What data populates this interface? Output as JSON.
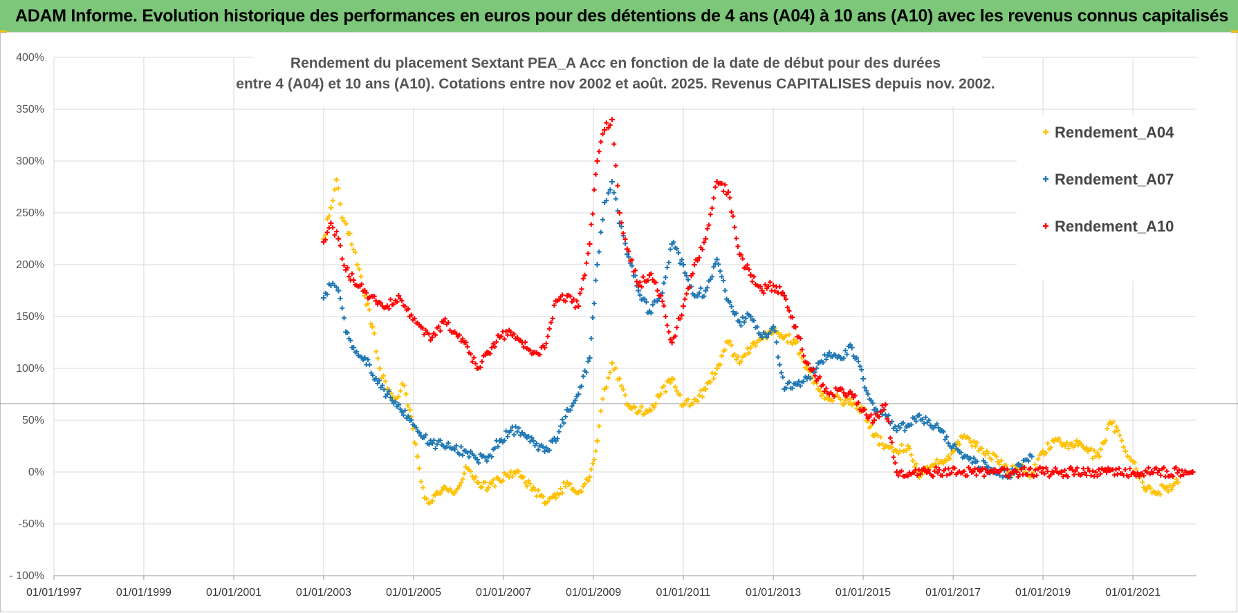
{
  "banner": {
    "title": "ADAM Informe. Evolution historique des performances en euros pour des détentions de 4 ans (A04) à 10 ans (A10) avec les revenus connus capitalisés",
    "background": "#7cc779"
  },
  "chart_data": {
    "type": "scatter",
    "title_line1": "Rendement du placement Sextant PEA_A Acc en fonction de la date de début pour des durées",
    "title_line2": "entre 4 (A04) et 10 ans (A10). Cotations entre nov 2002 et août. 2025. Revenus CAPITALISES depuis nov. 2002.",
    "x_axis": {
      "type": "date",
      "min": "1997-01-01",
      "max": "2022-06-01",
      "ticks": [
        "1997-01-01",
        "1999-01-01",
        "2001-01-01",
        "2003-01-01",
        "2005-01-01",
        "2007-01-01",
        "2009-01-01",
        "2011-01-01",
        "2013-01-01",
        "2015-01-01",
        "2017-01-01",
        "2019-01-01",
        "2021-01-01"
      ],
      "tick_labels": [
        "01/01/1997",
        "01/01/1999",
        "01/01/2001",
        "01/01/2003",
        "01/01/2005",
        "01/01/2007",
        "01/01/2009",
        "01/01/2011",
        "01/01/2013",
        "01/01/2015",
        "01/01/2017",
        "01/01/2019",
        "01/01/2021"
      ]
    },
    "y_axis": {
      "min": -100,
      "max": 400,
      "step": 50,
      "tick_labels": [
        "- 100%",
        "-50%",
        "0%",
        "50%",
        "100%",
        "150%",
        "200%",
        "250%",
        "300%",
        "350%",
        "400%"
      ]
    },
    "grid": true,
    "reference_line_y": 66,
    "legend_position": "top-right",
    "series": [
      {
        "name": "Rendement_A04",
        "color": "#ffc000",
        "points": [
          [
            "2003-01-01",
            225
          ],
          [
            "2003-03-01",
            255
          ],
          [
            "2003-04-15",
            282
          ],
          [
            "2003-06-01",
            245
          ],
          [
            "2003-08-01",
            230
          ],
          [
            "2003-10-01",
            200
          ],
          [
            "2003-12-01",
            170
          ],
          [
            "2004-02-01",
            140
          ],
          [
            "2004-04-01",
            100
          ],
          [
            "2004-06-01",
            80
          ],
          [
            "2004-08-01",
            70
          ],
          [
            "2004-10-01",
            85
          ],
          [
            "2004-12-01",
            60
          ],
          [
            "2005-02-01",
            15
          ],
          [
            "2005-04-01",
            -25
          ],
          [
            "2005-06-01",
            -28
          ],
          [
            "2005-09-01",
            -15
          ],
          [
            "2005-12-01",
            -20
          ],
          [
            "2006-03-01",
            5
          ],
          [
            "2006-06-01",
            -10
          ],
          [
            "2006-09-01",
            -15
          ],
          [
            "2006-12-01",
            -8
          ],
          [
            "2007-03-01",
            0
          ],
          [
            "2007-06-01",
            -5
          ],
          [
            "2007-09-01",
            -15
          ],
          [
            "2007-12-01",
            -30
          ],
          [
            "2008-03-01",
            -25
          ],
          [
            "2008-06-01",
            -10
          ],
          [
            "2008-09-01",
            -20
          ],
          [
            "2008-12-01",
            -5
          ],
          [
            "2009-02-01",
            30
          ],
          [
            "2009-04-01",
            80
          ],
          [
            "2009-06-01",
            105
          ],
          [
            "2009-08-01",
            90
          ],
          [
            "2009-10-01",
            65
          ],
          [
            "2010-01-01",
            58
          ],
          [
            "2010-04-01",
            60
          ],
          [
            "2010-07-01",
            75
          ],
          [
            "2010-10-01",
            90
          ],
          [
            "2011-01-01",
            65
          ],
          [
            "2011-04-01",
            70
          ],
          [
            "2011-07-01",
            80
          ],
          [
            "2011-10-01",
            100
          ],
          [
            "2012-01-01",
            125
          ],
          [
            "2012-04-01",
            105
          ],
          [
            "2012-07-01",
            120
          ],
          [
            "2012-10-01",
            130
          ],
          [
            "2013-01-01",
            135
          ],
          [
            "2013-04-01",
            130
          ],
          [
            "2013-07-01",
            125
          ],
          [
            "2013-10-01",
            100
          ],
          [
            "2014-01-01",
            80
          ],
          [
            "2014-04-01",
            70
          ],
          [
            "2014-07-01",
            70
          ],
          [
            "2014-10-01",
            65
          ],
          [
            "2015-01-01",
            60
          ],
          [
            "2015-04-01",
            35
          ],
          [
            "2015-07-01",
            25
          ],
          [
            "2015-10-01",
            20
          ],
          [
            "2016-01-01",
            25
          ],
          [
            "2016-04-01",
            -5
          ],
          [
            "2016-07-01",
            5
          ],
          [
            "2016-10-01",
            10
          ],
          [
            "2017-01-01",
            20
          ],
          [
            "2017-04-01",
            35
          ],
          [
            "2017-07-01",
            25
          ],
          [
            "2017-10-01",
            20
          ],
          [
            "2018-01-01",
            10
          ],
          [
            "2018-04-01",
            0
          ],
          [
            "2018-07-01",
            5
          ],
          [
            "2018-10-01",
            -2
          ],
          [
            "2019-01-01",
            20
          ],
          [
            "2019-04-01",
            30
          ],
          [
            "2019-07-01",
            25
          ],
          [
            "2019-10-01",
            30
          ],
          [
            "2020-01-01",
            20
          ],
          [
            "2020-04-01",
            15
          ],
          [
            "2020-07-01",
            48
          ],
          [
            "2020-09-01",
            40
          ],
          [
            "2020-11-01",
            20
          ],
          [
            "2021-01-01",
            10
          ],
          [
            "2021-04-01",
            -15
          ],
          [
            "2021-07-01",
            -20
          ],
          [
            "2021-10-01",
            -15
          ],
          [
            "2022-01-01",
            -10
          ]
        ]
      },
      {
        "name": "Rendement_A07",
        "color": "#1f77b4",
        "points": [
          [
            "2003-01-01",
            168
          ],
          [
            "2003-03-01",
            180
          ],
          [
            "2003-05-01",
            175
          ],
          [
            "2003-07-01",
            135
          ],
          [
            "2003-09-01",
            120
          ],
          [
            "2003-12-01",
            110
          ],
          [
            "2004-03-01",
            90
          ],
          [
            "2004-06-01",
            75
          ],
          [
            "2004-09-01",
            65
          ],
          [
            "2004-12-01",
            50
          ],
          [
            "2005-03-01",
            35
          ],
          [
            "2005-06-01",
            28
          ],
          [
            "2005-09-01",
            25
          ],
          [
            "2005-12-01",
            22
          ],
          [
            "2006-03-01",
            20
          ],
          [
            "2006-06-01",
            12
          ],
          [
            "2006-09-01",
            15
          ],
          [
            "2006-12-01",
            30
          ],
          [
            "2007-03-01",
            40
          ],
          [
            "2007-06-01",
            38
          ],
          [
            "2007-09-01",
            30
          ],
          [
            "2007-12-01",
            20
          ],
          [
            "2008-03-01",
            30
          ],
          [
            "2008-06-01",
            60
          ],
          [
            "2008-09-01",
            75
          ],
          [
            "2008-12-01",
            110
          ],
          [
            "2009-02-01",
            200
          ],
          [
            "2009-04-01",
            260
          ],
          [
            "2009-06-01",
            280
          ],
          [
            "2009-08-01",
            240
          ],
          [
            "2009-10-01",
            210
          ],
          [
            "2010-01-01",
            175
          ],
          [
            "2010-04-01",
            155
          ],
          [
            "2010-07-01",
            170
          ],
          [
            "2010-10-01",
            220
          ],
          [
            "2011-01-01",
            200
          ],
          [
            "2011-04-01",
            170
          ],
          [
            "2011-07-01",
            175
          ],
          [
            "2011-10-01",
            205
          ],
          [
            "2012-01-01",
            165
          ],
          [
            "2012-04-01",
            145
          ],
          [
            "2012-07-01",
            150
          ],
          [
            "2012-10-01",
            130
          ],
          [
            "2013-01-01",
            140
          ],
          [
            "2013-04-01",
            80
          ],
          [
            "2013-07-01",
            85
          ],
          [
            "2013-10-01",
            90
          ],
          [
            "2014-01-01",
            105
          ],
          [
            "2014-04-01",
            115
          ],
          [
            "2014-07-01",
            110
          ],
          [
            "2014-10-01",
            120
          ],
          [
            "2015-01-01",
            90
          ],
          [
            "2015-04-01",
            60
          ],
          [
            "2015-07-01",
            55
          ],
          [
            "2015-10-01",
            40
          ],
          [
            "2016-01-01",
            45
          ],
          [
            "2016-04-01",
            55
          ],
          [
            "2016-07-01",
            45
          ],
          [
            "2016-10-01",
            40
          ],
          [
            "2017-01-01",
            25
          ],
          [
            "2017-04-01",
            15
          ],
          [
            "2017-07-01",
            10
          ],
          [
            "2017-10-01",
            5
          ],
          [
            "2018-01-01",
            0
          ],
          [
            "2018-04-01",
            -3
          ],
          [
            "2018-07-01",
            5
          ],
          [
            "2018-10-01",
            15
          ]
        ]
      },
      {
        "name": "Rendement_A10",
        "color": "#ff0000",
        "points": [
          [
            "2003-01-01",
            222
          ],
          [
            "2003-03-01",
            240
          ],
          [
            "2003-05-01",
            225
          ],
          [
            "2003-07-01",
            195
          ],
          [
            "2003-09-01",
            185
          ],
          [
            "2003-12-01",
            175
          ],
          [
            "2004-03-01",
            165
          ],
          [
            "2004-06-01",
            160
          ],
          [
            "2004-09-01",
            170
          ],
          [
            "2004-12-01",
            150
          ],
          [
            "2005-03-01",
            140
          ],
          [
            "2005-06-01",
            130
          ],
          [
            "2005-09-01",
            145
          ],
          [
            "2005-12-01",
            135
          ],
          [
            "2006-03-01",
            125
          ],
          [
            "2006-06-01",
            100
          ],
          [
            "2006-09-01",
            115
          ],
          [
            "2006-12-01",
            130
          ],
          [
            "2007-03-01",
            135
          ],
          [
            "2007-06-01",
            125
          ],
          [
            "2007-09-01",
            115
          ],
          [
            "2007-12-01",
            120
          ],
          [
            "2008-03-01",
            165
          ],
          [
            "2008-06-01",
            170
          ],
          [
            "2008-09-01",
            160
          ],
          [
            "2008-12-01",
            220
          ],
          [
            "2009-02-01",
            300
          ],
          [
            "2009-04-01",
            330
          ],
          [
            "2009-06-01",
            340
          ],
          [
            "2009-08-01",
            250
          ],
          [
            "2009-10-01",
            215
          ],
          [
            "2010-01-01",
            180
          ],
          [
            "2010-04-01",
            190
          ],
          [
            "2010-07-01",
            170
          ],
          [
            "2010-10-01",
            125
          ],
          [
            "2011-01-01",
            160
          ],
          [
            "2011-04-01",
            200
          ],
          [
            "2011-07-01",
            225
          ],
          [
            "2011-10-01",
            280
          ],
          [
            "2012-01-01",
            270
          ],
          [
            "2012-04-01",
            210
          ],
          [
            "2012-07-01",
            190
          ],
          [
            "2012-10-01",
            175
          ],
          [
            "2013-01-01",
            180
          ],
          [
            "2013-04-01",
            170
          ],
          [
            "2013-07-01",
            140
          ],
          [
            "2013-10-01",
            105
          ],
          [
            "2014-01-01",
            90
          ],
          [
            "2014-04-01",
            75
          ],
          [
            "2014-07-01",
            80
          ],
          [
            "2014-10-01",
            75
          ],
          [
            "2015-01-01",
            60
          ],
          [
            "2015-04-01",
            50
          ],
          [
            "2015-07-01",
            65
          ],
          [
            "2015-10-01",
            0
          ],
          [
            "2016-06-01",
            0
          ],
          [
            "2017-06-01",
            0
          ],
          [
            "2018-06-01",
            0
          ],
          [
            "2019-06-01",
            0
          ],
          [
            "2020-06-01",
            0
          ],
          [
            "2021-06-01",
            0
          ],
          [
            "2022-05-01",
            0
          ]
        ]
      }
    ]
  }
}
